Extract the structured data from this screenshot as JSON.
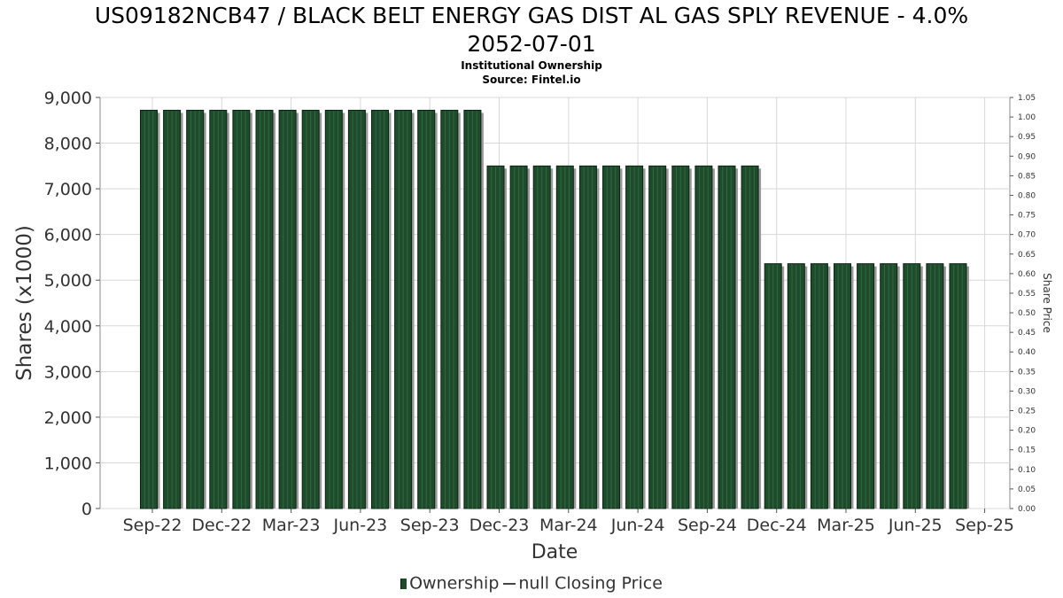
{
  "header": {
    "title_line1": "US09182NCB47 / BLACK BELT ENERGY GAS DIST AL GAS SPLY REVENUE - 4.0%",
    "title_line2": "2052-07-01",
    "subtitle1": "Institutional Ownership",
    "subtitle2": "Source: Fintel.io"
  },
  "legend": {
    "ownership": "Ownership",
    "closing_price": "null Closing Price"
  },
  "colors": {
    "bar": "#1f4a2c",
    "bar_stripe": "#2f6a40",
    "bar_shadow": "#9a9a9a",
    "grid": "#d8d8d8"
  },
  "chart_data": {
    "type": "bar",
    "xlabel": "Date",
    "ylabel": "Shares (x1000)",
    "y2label": "Share Price",
    "ylim": [
      0,
      9000
    ],
    "y2lim": [
      0,
      1.05
    ],
    "yticks": [
      "0",
      "1,000",
      "2,000",
      "3,000",
      "4,000",
      "5,000",
      "6,000",
      "7,000",
      "8,000",
      "9,000"
    ],
    "y2ticks": [
      "0.00",
      "0.05",
      "0.10",
      "0.15",
      "0.20",
      "0.25",
      "0.30",
      "0.35",
      "0.40",
      "0.45",
      "0.50",
      "0.55",
      "0.60",
      "0.65",
      "0.70",
      "0.75",
      "0.80",
      "0.85",
      "0.90",
      "0.95",
      "1.00",
      "1.05"
    ],
    "xticks": [
      "Sep-22",
      "Dec-22",
      "Mar-23",
      "Jun-23",
      "Sep-23",
      "Dec-23",
      "Mar-24",
      "Jun-24",
      "Sep-24",
      "Dec-24",
      "Mar-25",
      "Jun-25",
      "Sep-25"
    ],
    "grid": true,
    "series": [
      {
        "name": "Ownership",
        "values": [
          8720,
          8720,
          8720,
          8720,
          8720,
          8720,
          8720,
          8720,
          8720,
          8720,
          8720,
          8720,
          8720,
          8720,
          8720,
          7500,
          7500,
          7500,
          7500,
          7500,
          7500,
          7500,
          7500,
          7500,
          7500,
          7500,
          7500,
          5360,
          5360,
          5360,
          5360,
          5360,
          5360,
          5360,
          5360,
          5360
        ]
      }
    ]
  }
}
